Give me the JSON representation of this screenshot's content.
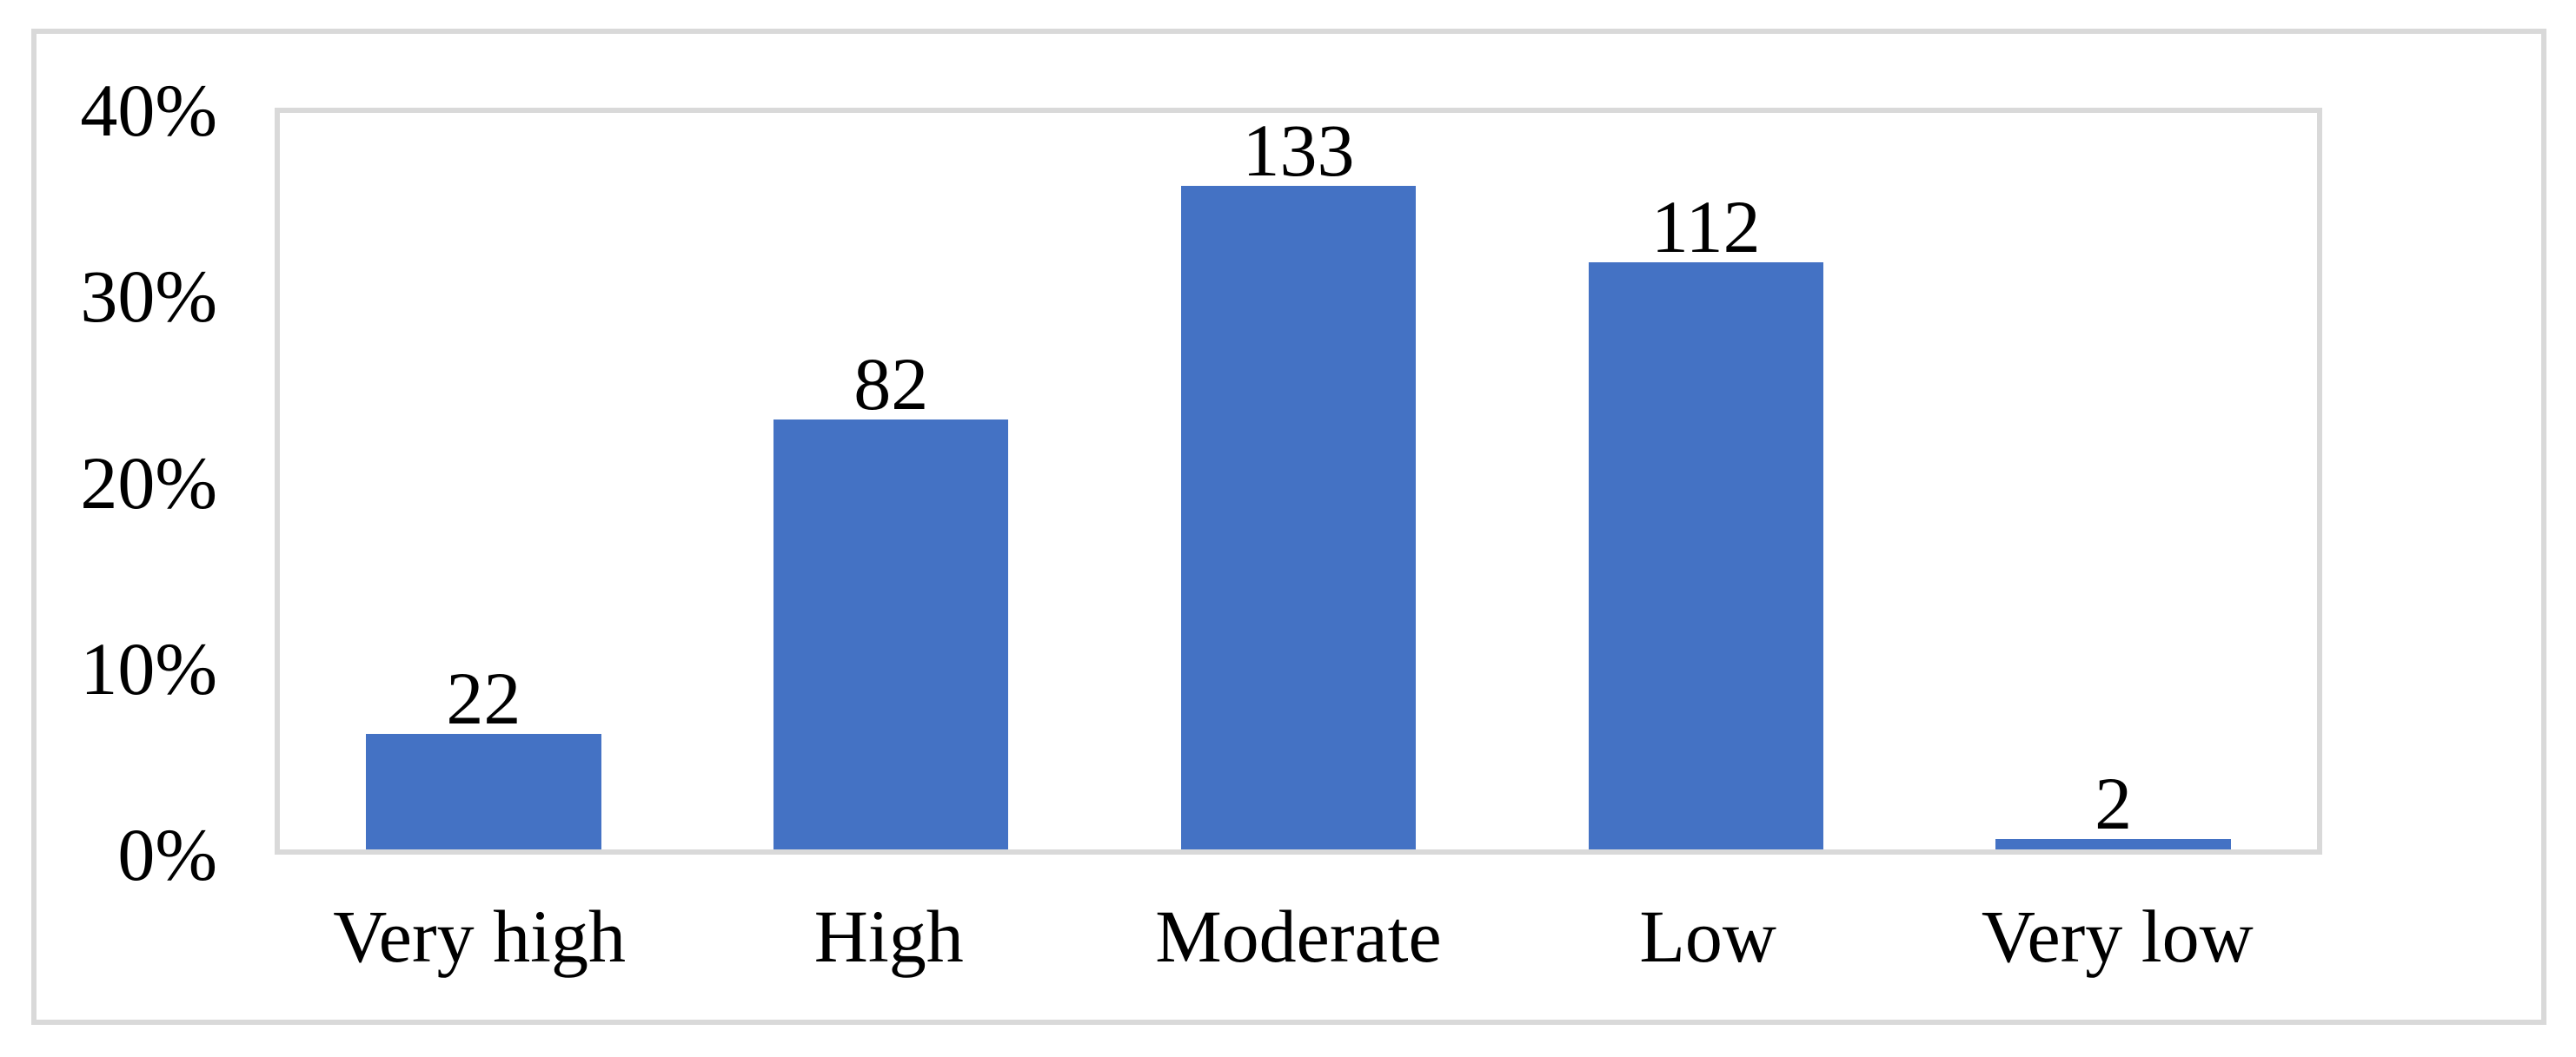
{
  "figure": {
    "background": "#ffffff",
    "border_color": "#d9d9d9"
  },
  "chart_data": {
    "type": "bar",
    "title": "",
    "xlabel": "",
    "ylabel": "",
    "categories": [
      "Very high",
      "High",
      "Moderate",
      "Low",
      "Very low"
    ],
    "values": [
      22,
      82,
      133,
      112,
      2
    ],
    "value_labels": [
      "22",
      "82",
      "133",
      "112",
      "2"
    ],
    "bar_heights_pct": [
      6.27,
      23.36,
      37.89,
      31.91,
      0.57
    ],
    "y_ticks": [
      "0%",
      "10%",
      "20%",
      "30%",
      "40%"
    ],
    "y_tick_values": [
      0,
      10,
      20,
      30,
      40
    ],
    "ylim": [
      0,
      40
    ],
    "grid": "off",
    "legend": "none",
    "bar_color": "#4472c4",
    "axis_color": "#d9d9d9",
    "text_color": "#000000"
  }
}
